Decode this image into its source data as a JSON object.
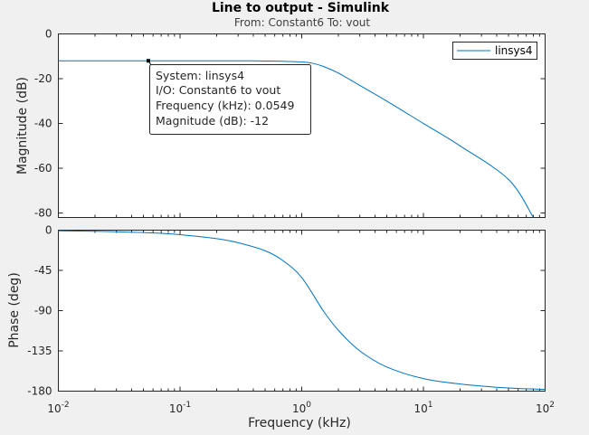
{
  "title": "Line to output - Simulink",
  "subtitle": "From: Constant6  To: vout",
  "chart_data": [
    {
      "type": "line",
      "panel": "magnitude",
      "xlabel": "",
      "ylabel": "Magnitude (dB)",
      "xscale": "log",
      "xlim": [
        0.01,
        100
      ],
      "ylim": [
        -82,
        0
      ],
      "yticks": [
        "0",
        "-20",
        "-40",
        "-60",
        "-80"
      ],
      "grid": false,
      "legend": {
        "entries": [
          "linsys4"
        ],
        "placement": "top-right"
      },
      "series": [
        {
          "name": "linsys4",
          "color": "#0072bd",
          "x": [
            0.01,
            0.02,
            0.05,
            0.1,
            0.2,
            0.3,
            0.5,
            0.7,
            1.0,
            1.2,
            1.5,
            2.0,
            3.0,
            5.0,
            10,
            20,
            50,
            80
          ],
          "y": [
            -12,
            -12,
            -12,
            -12,
            -12,
            -12,
            -12.1,
            -12.2,
            -12.5,
            -13.0,
            -14.5,
            -17.5,
            -23,
            -30,
            -40,
            -50,
            -65,
            -82
          ]
        }
      ],
      "datatip": {
        "x": 0.0549,
        "y": -12,
        "lines": [
          "System: linsys4",
          "I/O: Constant6 to vout",
          "Frequency (kHz): 0.0549",
          "Magnitude (dB): -12"
        ]
      }
    },
    {
      "type": "line",
      "panel": "phase",
      "xlabel": "Frequency  (kHz)",
      "ylabel": "Phase (deg)",
      "xscale": "log",
      "xlim": [
        0.01,
        100
      ],
      "ylim": [
        -180,
        0
      ],
      "xticks": [
        {
          "base": "10",
          "exp": "-2"
        },
        {
          "base": "10",
          "exp": "-1"
        },
        {
          "base": "10",
          "exp": "0"
        },
        {
          "base": "10",
          "exp": "1"
        },
        {
          "base": "10",
          "exp": "2"
        }
      ],
      "yticks": [
        "0",
        "-45",
        "-90",
        "-135",
        "-180"
      ],
      "grid": false,
      "series": [
        {
          "name": "linsys4",
          "color": "#0072bd",
          "x": [
            0.01,
            0.02,
            0.05,
            0.1,
            0.2,
            0.3,
            0.5,
            0.7,
            1.0,
            1.5,
            2.0,
            3.0,
            5.0,
            10,
            20,
            50,
            100
          ],
          "y": [
            -0.8,
            -1.3,
            -2.7,
            -5,
            -9.5,
            -14,
            -23,
            -34,
            -53,
            -90,
            -112,
            -135,
            -153,
            -166,
            -172,
            -176.5,
            -178
          ]
        }
      ]
    }
  ]
}
